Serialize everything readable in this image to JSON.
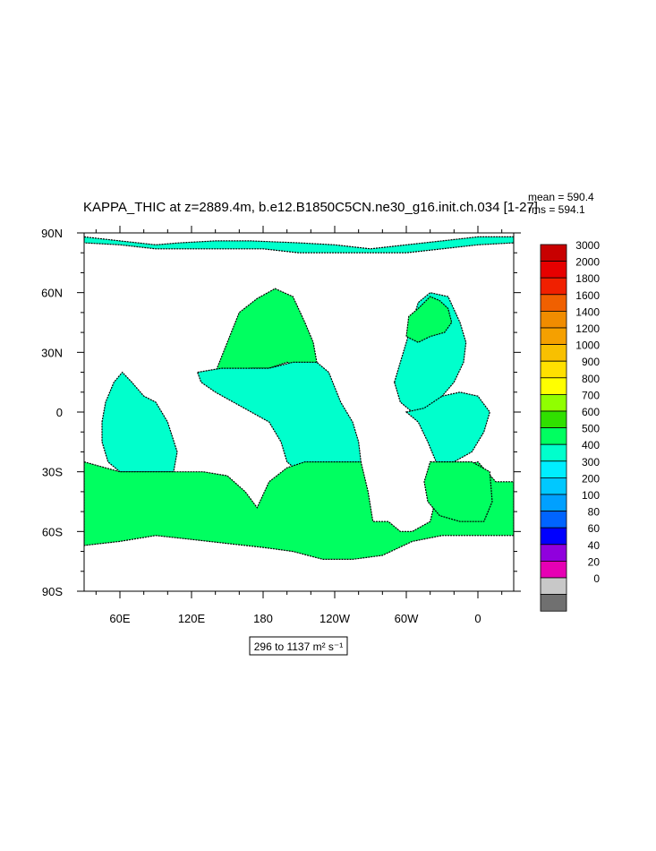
{
  "chart_data": {
    "type": "heatmap",
    "title": "KAPPA_THIC at z=2889.4m, b.e12.B1850C5CN.ne30_g16.init.ch.034 [1-27]",
    "stats": {
      "mean": "mean = 590.4",
      "rms": "rms = 594.1"
    },
    "x_ticks": [
      {
        "label": "60E",
        "lon": 60
      },
      {
        "label": "120E",
        "lon": 120
      },
      {
        "label": "180",
        "lon": 180
      },
      {
        "label": "120W",
        "lon": 240
      },
      {
        "label": "60W",
        "lon": 300
      },
      {
        "label": "0",
        "lon": 360
      }
    ],
    "y_ticks": [
      {
        "label": "90N",
        "lat": 90
      },
      {
        "label": "60N",
        "lat": 60
      },
      {
        "label": "30N",
        "lat": 30
      },
      {
        "label": "0",
        "lat": 0
      },
      {
        "label": "30S",
        "lat": -30
      },
      {
        "label": "60S",
        "lat": -60
      },
      {
        "label": "90S",
        "lat": -90
      }
    ],
    "xlim": [
      30,
      390
    ],
    "ylim": [
      -90,
      90
    ],
    "range_label": "296 to 1137 m² s⁻¹",
    "colorbar": {
      "levels": [
        "3000",
        "2000",
        "1800",
        "1600",
        "1400",
        "1200",
        "1000",
        "900",
        "800",
        "700",
        "600",
        "500",
        "400",
        "300",
        "200",
        "100",
        "80",
        "60",
        "40",
        "20",
        "0"
      ],
      "colors": [
        "#c80000",
        "#e60000",
        "#f02000",
        "#f06000",
        "#f08c00",
        "#f5a000",
        "#f8c000",
        "#ffe000",
        "#ffff00",
        "#90ff00",
        "#30e000",
        "#00ff60",
        "#00ffcc",
        "#00eeff",
        "#00c8ff",
        "#00a0ff",
        "#0064ff",
        "#0000ff",
        "#9000dd",
        "#e600b4",
        "#c8c8c8",
        "#707070"
      ]
    },
    "regions": [
      {
        "name": "north-pacific",
        "class": "600-700",
        "color": "#00ff60",
        "points": [
          [
            140,
            20
          ],
          [
            150,
            35
          ],
          [
            160,
            50
          ],
          [
            175,
            57
          ],
          [
            190,
            62
          ],
          [
            205,
            58
          ],
          [
            215,
            45
          ],
          [
            222,
            35
          ],
          [
            225,
            25
          ],
          [
            215,
            22
          ],
          [
            200,
            25
          ],
          [
            185,
            22
          ],
          [
            170,
            22
          ],
          [
            155,
            20
          ]
        ]
      },
      {
        "name": "tropical-pacific",
        "class": "500-600",
        "color": "#00ffcc",
        "points": [
          [
            125,
            20
          ],
          [
            145,
            22
          ],
          [
            165,
            22
          ],
          [
            185,
            22
          ],
          [
            205,
            25
          ],
          [
            225,
            25
          ],
          [
            235,
            20
          ],
          [
            245,
            5
          ],
          [
            255,
            -5
          ],
          [
            260,
            -15
          ],
          [
            262,
            -25
          ],
          [
            255,
            -30
          ],
          [
            240,
            -30
          ],
          [
            225,
            -30
          ],
          [
            210,
            -30
          ],
          [
            200,
            -25
          ],
          [
            195,
            -15
          ],
          [
            185,
            -5
          ],
          [
            170,
            0
          ],
          [
            155,
            5
          ],
          [
            140,
            10
          ],
          [
            128,
            15
          ]
        ]
      },
      {
        "name": "indian-ocean",
        "class": "500-600",
        "color": "#00ffcc",
        "points": [
          [
            45,
            -5
          ],
          [
            48,
            5
          ],
          [
            55,
            15
          ],
          [
            62,
            20
          ],
          [
            70,
            15
          ],
          [
            80,
            8
          ],
          [
            90,
            5
          ],
          [
            100,
            -5
          ],
          [
            108,
            -20
          ],
          [
            105,
            -30
          ],
          [
            90,
            -30
          ],
          [
            75,
            -30
          ],
          [
            60,
            -30
          ],
          [
            50,
            -25
          ],
          [
            45,
            -15
          ]
        ]
      },
      {
        "name": "north-atlantic",
        "class": "500-600",
        "color": "#00ffcc",
        "points": [
          [
            290,
            15
          ],
          [
            295,
            25
          ],
          [
            300,
            35
          ],
          [
            305,
            45
          ],
          [
            310,
            55
          ],
          [
            320,
            60
          ],
          [
            335,
            58
          ],
          [
            345,
            45
          ],
          [
            350,
            35
          ],
          [
            348,
            25
          ],
          [
            340,
            15
          ],
          [
            330,
            8
          ],
          [
            318,
            0
          ],
          [
            305,
            0
          ],
          [
            295,
            5
          ]
        ]
      },
      {
        "name": "tropical-atlantic",
        "class": "500-600",
        "color": "#00ffcc",
        "points": [
          [
            300,
            0
          ],
          [
            310,
            -5
          ],
          [
            318,
            -15
          ],
          [
            325,
            -25
          ],
          [
            340,
            -25
          ],
          [
            355,
            -20
          ],
          [
            365,
            -10
          ],
          [
            370,
            0
          ],
          [
            360,
            8
          ],
          [
            345,
            10
          ],
          [
            330,
            8
          ],
          [
            315,
            2
          ]
        ]
      },
      {
        "name": "arctic",
        "class": "500-600",
        "color": "#00ffcc",
        "points": [
          [
            30,
            88
          ],
          [
            60,
            86
          ],
          [
            90,
            84
          ],
          [
            110,
            85
          ],
          [
            140,
            86
          ],
          [
            170,
            86
          ],
          [
            210,
            85
          ],
          [
            240,
            84
          ],
          [
            270,
            82
          ],
          [
            300,
            84
          ],
          [
            330,
            86
          ],
          [
            360,
            88
          ],
          [
            390,
            88
          ],
          [
            390,
            85
          ],
          [
            360,
            84
          ],
          [
            330,
            82
          ],
          [
            300,
            80
          ],
          [
            270,
            80
          ],
          [
            240,
            80
          ],
          [
            210,
            80
          ],
          [
            180,
            82
          ],
          [
            150,
            82
          ],
          [
            120,
            82
          ],
          [
            90,
            82
          ],
          [
            60,
            84
          ],
          [
            30,
            85
          ]
        ]
      },
      {
        "name": "north-atlantic-subpolar",
        "class": "600-700",
        "color": "#00ff60",
        "points": [
          [
            300,
            38
          ],
          [
            302,
            48
          ],
          [
            310,
            52
          ],
          [
            320,
            58
          ],
          [
            328,
            56
          ],
          [
            335,
            52
          ],
          [
            338,
            45
          ],
          [
            332,
            40
          ],
          [
            320,
            38
          ],
          [
            310,
            35
          ]
        ]
      },
      {
        "name": "southern-ocean",
        "class": "600-700",
        "color": "#00ff60",
        "points": [
          [
            30,
            -25
          ],
          [
            60,
            -30
          ],
          [
            90,
            -30
          ],
          [
            105,
            -30
          ],
          [
            130,
            -30
          ],
          [
            150,
            -32
          ],
          [
            165,
            -40
          ],
          [
            175,
            -48
          ],
          [
            185,
            -35
          ],
          [
            200,
            -28
          ],
          [
            215,
            -25
          ],
          [
            240,
            -25
          ],
          [
            262,
            -25
          ],
          [
            268,
            -40
          ],
          [
            272,
            -55
          ],
          [
            285,
            -55
          ],
          [
            295,
            -60
          ],
          [
            305,
            -60
          ],
          [
            320,
            -55
          ],
          [
            330,
            -30
          ],
          [
            360,
            -25
          ],
          [
            375,
            -35
          ],
          [
            390,
            -35
          ],
          [
            390,
            -62
          ],
          [
            360,
            -62
          ],
          [
            330,
            -62
          ],
          [
            305,
            -65
          ],
          [
            280,
            -72
          ],
          [
            255,
            -74
          ],
          [
            230,
            -74
          ],
          [
            205,
            -70
          ],
          [
            180,
            -68
          ],
          [
            150,
            -66
          ],
          [
            120,
            -64
          ],
          [
            90,
            -62
          ],
          [
            60,
            -65
          ],
          [
            30,
            -67
          ]
        ]
      },
      {
        "name": "south-atlantic-basin",
        "class": "600-700",
        "color": "#00ff60",
        "points": [
          [
            320,
            -25
          ],
          [
            340,
            -25
          ],
          [
            355,
            -25
          ],
          [
            370,
            -30
          ],
          [
            372,
            -45
          ],
          [
            365,
            -55
          ],
          [
            345,
            -55
          ],
          [
            328,
            -52
          ],
          [
            318,
            -45
          ],
          [
            315,
            -35
          ]
        ]
      }
    ]
  }
}
